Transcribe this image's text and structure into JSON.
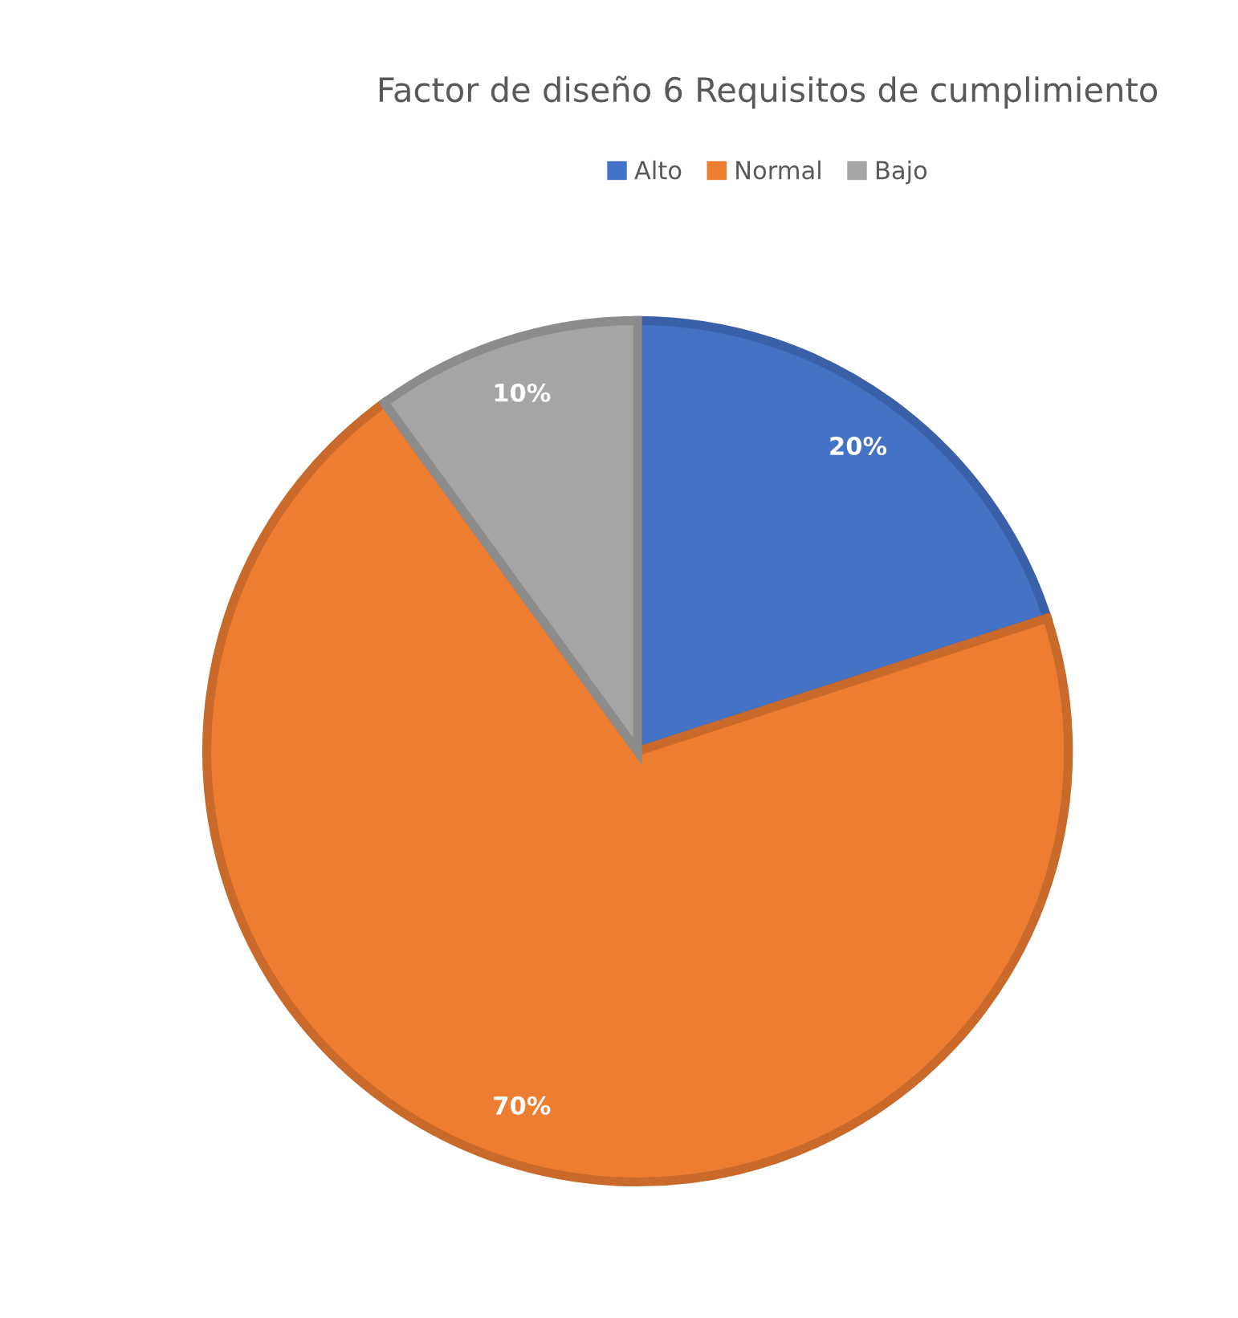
{
  "chart_data": {
    "type": "pie",
    "title": "Factor de diseño 6 Requisitos de cumplimiento",
    "categories": [
      "Alto",
      "Normal",
      "Bajo"
    ],
    "values": [
      20,
      70,
      10
    ],
    "colors": [
      "#4472c4",
      "#ed7d31",
      "#a5a5a5"
    ],
    "value_labels": [
      "20%",
      "70%",
      "10%"
    ],
    "legend": "top"
  }
}
